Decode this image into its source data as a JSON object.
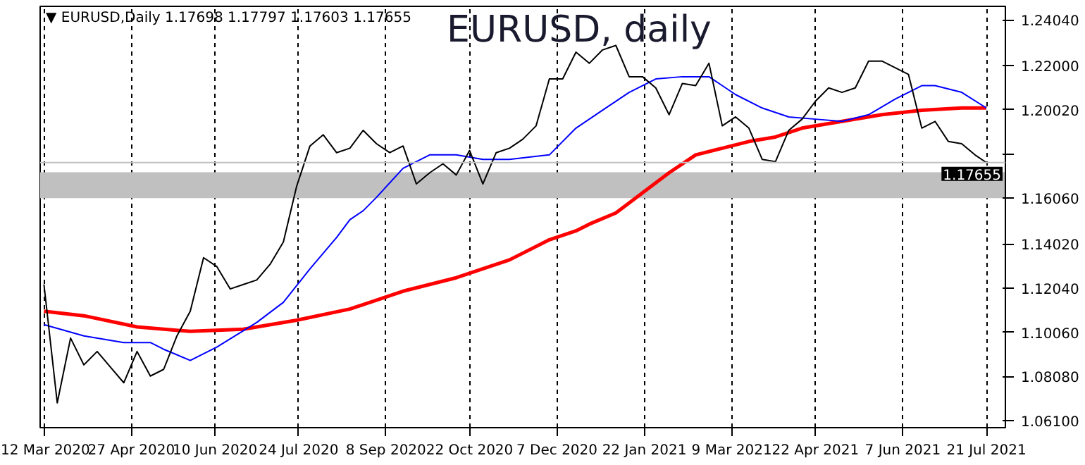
{
  "chart_data": {
    "type": "line",
    "title": "EURUSD, daily",
    "annotations": [
      "▼ EURUSD,Daily  1.17698 1.17797 1.17603 1.17655"
    ],
    "series": [
      {
        "color": "#000000",
        "x": [
          "2020-03-12",
          "2020-03-19",
          "2020-03-26",
          "2020-04-02",
          "2020-04-09",
          "2020-04-16",
          "2020-04-23",
          "2020-04-30",
          "2020-05-07",
          "2020-05-14",
          "2020-05-21",
          "2020-05-28",
          "2020-06-04",
          "2020-06-11",
          "2020-06-18",
          "2020-06-25",
          "2020-07-02",
          "2020-07-09",
          "2020-07-16",
          "2020-07-23",
          "2020-07-30",
          "2020-08-06",
          "2020-08-13",
          "2020-08-20",
          "2020-08-27",
          "2020-09-03",
          "2020-09-10",
          "2020-09-17",
          "2020-09-24",
          "2020-10-01",
          "2020-10-08",
          "2020-10-15",
          "2020-10-22",
          "2020-10-29",
          "2020-11-05",
          "2020-11-12",
          "2020-11-19",
          "2020-11-26",
          "2020-12-03",
          "2020-12-10",
          "2020-12-17",
          "2020-12-24",
          "2020-12-31",
          "2021-01-07",
          "2021-01-14",
          "2021-01-21",
          "2021-01-28",
          "2021-02-04",
          "2021-02-11",
          "2021-02-18",
          "2021-02-25",
          "2021-03-04",
          "2021-03-11",
          "2021-03-18",
          "2021-03-25",
          "2021-04-01",
          "2021-04-08",
          "2021-04-15",
          "2021-04-22",
          "2021-04-29",
          "2021-05-06",
          "2021-05-13",
          "2021-05-20",
          "2021-05-27",
          "2021-06-03",
          "2021-06-10",
          "2021-06-17",
          "2021-06-24",
          "2021-07-01",
          "2021-07-08",
          "2021-07-15",
          "2021-07-21"
        ],
        "values": [
          1.122,
          1.069,
          1.098,
          1.086,
          1.092,
          1.085,
          1.078,
          1.092,
          1.081,
          1.084,
          1.099,
          1.11,
          1.134,
          1.13,
          1.12,
          1.122,
          1.124,
          1.131,
          1.141,
          1.166,
          1.184,
          1.189,
          1.181,
          1.183,
          1.191,
          1.185,
          1.181,
          1.184,
          1.167,
          1.172,
          1.176,
          1.171,
          1.182,
          1.167,
          1.181,
          1.183,
          1.187,
          1.193,
          1.214,
          1.214,
          1.226,
          1.221,
          1.227,
          1.229,
          1.215,
          1.215,
          1.21,
          1.198,
          1.212,
          1.211,
          1.221,
          1.193,
          1.197,
          1.192,
          1.178,
          1.177,
          1.191,
          1.196,
          1.204,
          1.21,
          1.208,
          1.21,
          1.222,
          1.222,
          1.219,
          1.216,
          1.192,
          1.195,
          1.186,
          1.185,
          1.18,
          1.17655
        ]
      },
      {
        "color": "#0000ff",
        "x": [
          "2020-03-12",
          "2020-04-02",
          "2020-04-23",
          "2020-05-07",
          "2020-05-14",
          "2020-05-28",
          "2020-06-11",
          "2020-07-02",
          "2020-07-16",
          "2020-07-30",
          "2020-08-13",
          "2020-08-20",
          "2020-08-27",
          "2020-09-03",
          "2020-09-17",
          "2020-10-01",
          "2020-10-15",
          "2020-10-29",
          "2020-11-12",
          "2020-12-03",
          "2020-12-17",
          "2020-12-31",
          "2021-01-14",
          "2021-01-28",
          "2021-02-11",
          "2021-02-25",
          "2021-03-11",
          "2021-03-25",
          "2021-04-08",
          "2021-04-22",
          "2021-05-06",
          "2021-05-20",
          "2021-06-03",
          "2021-06-17",
          "2021-06-24",
          "2021-07-08",
          "2021-07-21"
        ],
        "values": [
          1.104,
          1.099,
          1.096,
          1.096,
          1.093,
          1.088,
          1.094,
          1.105,
          1.114,
          1.129,
          1.143,
          1.151,
          1.155,
          1.161,
          1.174,
          1.18,
          1.18,
          1.178,
          1.178,
          1.18,
          1.192,
          1.2,
          1.208,
          1.214,
          1.215,
          1.215,
          1.207,
          1.201,
          1.197,
          1.196,
          1.195,
          1.198,
          1.205,
          1.211,
          1.211,
          1.208,
          1.201
        ]
      },
      {
        "color": "#ff0000",
        "x": [
          "2020-03-12",
          "2020-04-02",
          "2020-04-30",
          "2020-05-28",
          "2020-06-25",
          "2020-07-23",
          "2020-08-20",
          "2020-09-17",
          "2020-10-15",
          "2020-11-12",
          "2020-12-03",
          "2020-12-17",
          "2020-12-24",
          "2021-01-07",
          "2021-01-21",
          "2021-02-04",
          "2021-02-18",
          "2021-03-04",
          "2021-03-18",
          "2021-04-01",
          "2021-04-15",
          "2021-05-06",
          "2021-05-27",
          "2021-06-17",
          "2021-07-08",
          "2021-07-21"
        ],
        "values": [
          1.11,
          1.108,
          1.103,
          1.101,
          1.102,
          1.106,
          1.111,
          1.119,
          1.125,
          1.133,
          1.142,
          1.146,
          1.149,
          1.154,
          1.163,
          1.172,
          1.18,
          1.183,
          1.186,
          1.188,
          1.192,
          1.195,
          1.198,
          1.2,
          1.201,
          1.201
        ]
      }
    ],
    "xlim": [
      "2020-03-10",
      "2021-07-31"
    ],
    "xticks": [
      {
        "value": "2020-03-12",
        "label": "12 Mar 2020"
      },
      {
        "value": "2020-04-27",
        "label": "27 Apr 2020"
      },
      {
        "value": "2020-06-10",
        "label": "10 Jun 2020"
      },
      {
        "value": "2020-07-24",
        "label": "24 Jul 2020"
      },
      {
        "value": "2020-09-08",
        "label": "8 Sep 2020"
      },
      {
        "value": "2020-10-22",
        "label": "22 Oct 2020"
      },
      {
        "value": "2020-12-07",
        "label": "7 Dec 2020"
      },
      {
        "value": "2021-01-22",
        "label": "22 Jan 2021"
      },
      {
        "value": "2021-03-09",
        "label": "9 Mar 2021"
      },
      {
        "value": "2021-04-22",
        "label": "22 Apr 2021"
      },
      {
        "value": "2021-06-07",
        "label": "7 Jun 2021"
      },
      {
        "value": "2021-07-21",
        "label": "21 Jul 2021"
      }
    ],
    "ylim": [
      1.0579,
      1.2465
    ],
    "yticks": [
      {
        "value": 1.2404,
        "label": "1.24040"
      },
      {
        "value": 1.22,
        "label": "1.22000"
      },
      {
        "value": 1.2002,
        "label": "1.20020"
      },
      {
        "value": 1.1804,
        "label": null
      },
      {
        "value": 1.1606,
        "label": "1.16060"
      },
      {
        "value": 1.1402,
        "label": "1.14020"
      },
      {
        "value": 1.1204,
        "label": "1.12040"
      },
      {
        "value": 1.1006,
        "label": "1.10060"
      },
      {
        "value": 1.0808,
        "label": "1.08080"
      },
      {
        "value": 1.061,
        "label": "1.06100"
      }
    ],
    "bands": [
      {
        "axis": "y",
        "from": 1.1606,
        "to": 1.1722,
        "color": "#c0c0c0"
      }
    ],
    "ref_lines": [
      {
        "axis": "y",
        "value": 1.17655,
        "label": "1.17655",
        "color": "#c0c0c0"
      }
    ],
    "grid": "x",
    "marker": "none"
  }
}
